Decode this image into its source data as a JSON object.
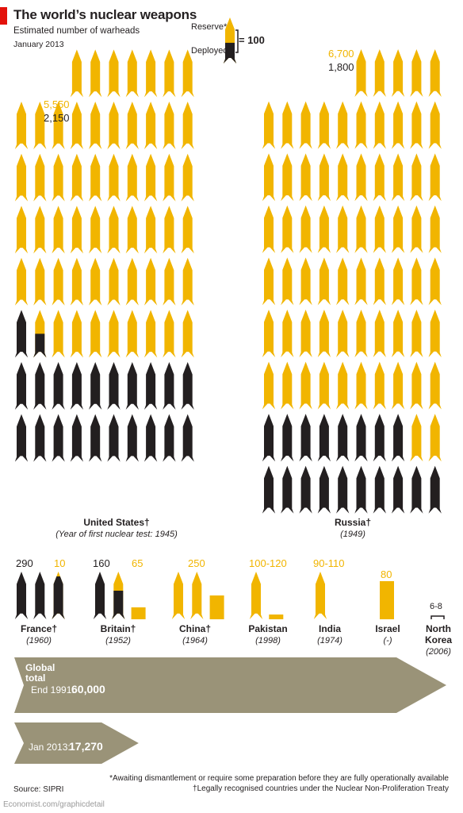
{
  "header": {
    "title": "The world’s nuclear weapons",
    "subtitle": "Estimated number of warheads",
    "date": "January 2013"
  },
  "legend": {
    "reserve_label": "Reserve*",
    "deployed_label": "Deployed",
    "equals_text": "= 100"
  },
  "colors": {
    "reserve": "#f1b500",
    "deployed": "#231f20",
    "arrow": "#9a9378",
    "accent": "#e3120b"
  },
  "chart_data": {
    "type": "pictogram",
    "unit": 100,
    "series": [
      {
        "name": "Reserve*",
        "color": "#f1b500"
      },
      {
        "name": "Deployed",
        "color": "#231f20"
      }
    ],
    "countries": [
      {
        "name": "United States†",
        "year": "(Year of first nuclear test: 1945)",
        "reserve": 5550,
        "deployed": 2150,
        "reserve_label": "5,550",
        "deployed_label": "2,150"
      },
      {
        "name": "Russia†",
        "year": "(1949)",
        "reserve": 6700,
        "deployed": 1800,
        "reserve_label": "6,700",
        "deployed_label": "1,800"
      },
      {
        "name": "France†",
        "year": "(1960)",
        "reserve": 10,
        "deployed": 290,
        "reserve_label": "10",
        "deployed_label": "290"
      },
      {
        "name": "Britain†",
        "year": "(1952)",
        "reserve": 65,
        "deployed": 160,
        "reserve_label": "65",
        "deployed_label": "160"
      },
      {
        "name": "China†",
        "year": "(1964)",
        "reserve": 250,
        "deployed": 0,
        "reserve_label": "250",
        "deployed_label": ""
      },
      {
        "name": "Pakistan",
        "year": "(1998)",
        "reserve": 110,
        "deployed": 0,
        "reserve_label": "100-120",
        "deployed_label": ""
      },
      {
        "name": "India",
        "year": "(1974)",
        "reserve": 100,
        "deployed": 0,
        "reserve_label": "90-110",
        "deployed_label": ""
      },
      {
        "name": "Israel",
        "year": "(-)",
        "reserve": 80,
        "deployed": 0,
        "reserve_label": "80",
        "deployed_label": ""
      },
      {
        "name": "North Korea",
        "year": "(2006)",
        "reserve": 7,
        "deployed": 0,
        "reserve_label": "6-8",
        "deployed_label": ""
      }
    ],
    "global": [
      {
        "label": "End 1991:",
        "value": 60000,
        "value_label": "60,000"
      },
      {
        "label": "Jan 2013:",
        "value": 17270,
        "value_label": "17,270"
      }
    ],
    "global_title": "Global total"
  },
  "footnotes": {
    "reserve_note": "*Awaiting dismantlement or require some preparation before they are fully operationally available",
    "treaty_note": "†Legally recognised countries under the Nuclear Non-Proliferation Treaty",
    "source": "Source: SIPRI",
    "credit": "Economist.com/graphicdetail"
  }
}
